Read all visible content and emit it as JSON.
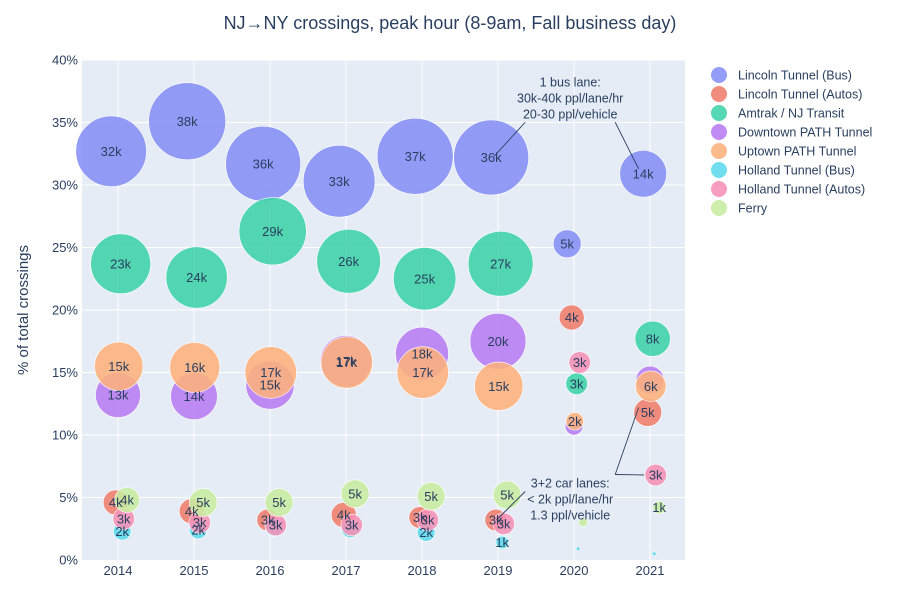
{
  "chart_data": {
    "type": "scatter",
    "title": "NJ→NY crossings, peak hour (8-9am, Fall business day)",
    "xlabel": "",
    "ylabel": "% of total crossings",
    "x_ticks": [
      "2014",
      "2015",
      "2016",
      "2017",
      "2018",
      "2019",
      "2020",
      "2021"
    ],
    "y_ticks": [
      "0%",
      "5%",
      "10%",
      "15%",
      "20%",
      "25%",
      "30%",
      "35%",
      "40%"
    ],
    "ylim": [
      0,
      40
    ],
    "grid": true,
    "legend_position": "right",
    "size_encodes": "crossings (thousands)",
    "series": [
      {
        "name": "Lincoln Tunnel (Bus)",
        "color": "#8590f6",
        "points": [
          {
            "x": 2014,
            "y": 32.7,
            "size_k": 32,
            "label": "32k"
          },
          {
            "x": 2015,
            "y": 35.1,
            "size_k": 38,
            "label": "38k"
          },
          {
            "x": 2016,
            "y": 31.7,
            "size_k": 36,
            "label": "36k"
          },
          {
            "x": 2017,
            "y": 30.3,
            "size_k": 33,
            "label": "33k"
          },
          {
            "x": 2018,
            "y": 32.3,
            "size_k": 37,
            "label": "37k"
          },
          {
            "x": 2019,
            "y": 32.2,
            "size_k": 36,
            "label": "36k"
          },
          {
            "x": 2020,
            "y": 25.3,
            "size_k": 5,
            "label": "5k"
          },
          {
            "x": 2021,
            "y": 30.9,
            "size_k": 14,
            "label": "14k"
          }
        ]
      },
      {
        "name": "Lincoln Tunnel (Autos)",
        "color": "#ef7d6b",
        "points": [
          {
            "x": 2014,
            "y": 4.6,
            "size_k": 4,
            "label": "4k"
          },
          {
            "x": 2015,
            "y": 3.9,
            "size_k": 4,
            "label": "4k"
          },
          {
            "x": 2016,
            "y": 3.2,
            "size_k": 3,
            "label": "3k"
          },
          {
            "x": 2017,
            "y": 3.6,
            "size_k": 4,
            "label": "4k"
          },
          {
            "x": 2018,
            "y": 3.4,
            "size_k": 3,
            "label": "3k"
          },
          {
            "x": 2019,
            "y": 3.2,
            "size_k": 3,
            "label": "3k"
          },
          {
            "x": 2020,
            "y": 19.4,
            "size_k": 4,
            "label": "4k"
          },
          {
            "x": 2021,
            "y": 11.8,
            "size_k": 5,
            "label": "5k"
          }
        ]
      },
      {
        "name": "Amtrak / NJ Transit",
        "color": "#3dd3a8",
        "points": [
          {
            "x": 2014,
            "y": 23.7,
            "size_k": 23,
            "label": "23k"
          },
          {
            "x": 2015,
            "y": 22.6,
            "size_k": 24,
            "label": "24k"
          },
          {
            "x": 2016,
            "y": 26.3,
            "size_k": 29,
            "label": "29k"
          },
          {
            "x": 2017,
            "y": 23.9,
            "size_k": 26,
            "label": "26k"
          },
          {
            "x": 2018,
            "y": 22.5,
            "size_k": 25,
            "label": "25k"
          },
          {
            "x": 2019,
            "y": 23.7,
            "size_k": 27,
            "label": "27k"
          },
          {
            "x": 2020,
            "y": 14.1,
            "size_k": 3,
            "label": "3k"
          },
          {
            "x": 2021,
            "y": 17.7,
            "size_k": 8,
            "label": "8k"
          }
        ]
      },
      {
        "name": "Downtown PATH Tunnel",
        "color": "#b77cf2",
        "points": [
          {
            "x": 2014,
            "y": 13.2,
            "size_k": 13,
            "label": "13k"
          },
          {
            "x": 2015,
            "y": 13.1,
            "size_k": 14,
            "label": "14k"
          },
          {
            "x": 2016,
            "y": 14.0,
            "size_k": 15,
            "label": "15k"
          },
          {
            "x": 2017,
            "y": 15.9,
            "size_k": 17,
            "label": "17k"
          },
          {
            "x": 2018,
            "y": 16.5,
            "size_k": 18,
            "label": "18k"
          },
          {
            "x": 2019,
            "y": 17.5,
            "size_k": 20,
            "label": "20k"
          },
          {
            "x": 2020,
            "y": 10.7,
            "size_k": 2,
            "label": ""
          },
          {
            "x": 2021,
            "y": 14.4,
            "size_k": 5,
            "label": ""
          }
        ]
      },
      {
        "name": "Uptown PATH Tunnel",
        "color": "#fdb07c",
        "points": [
          {
            "x": 2014,
            "y": 15.5,
            "size_k": 15,
            "label": "15k"
          },
          {
            "x": 2015,
            "y": 15.4,
            "size_k": 16,
            "label": "16k"
          },
          {
            "x": 2016,
            "y": 15.0,
            "size_k": 17,
            "label": "17k"
          },
          {
            "x": 2017,
            "y": 15.8,
            "size_k": 17,
            "label": "17k"
          },
          {
            "x": 2018,
            "y": 15.0,
            "size_k": 17,
            "label": "17k"
          },
          {
            "x": 2019,
            "y": 13.9,
            "size_k": 15,
            "label": "15k"
          },
          {
            "x": 2020,
            "y": 11.1,
            "size_k": 2,
            "label": "2k"
          },
          {
            "x": 2021,
            "y": 13.9,
            "size_k": 6,
            "label": "6k"
          }
        ]
      },
      {
        "name": "Holland Tunnel (Bus)",
        "color": "#5cd9ec",
        "points": [
          {
            "x": 2014,
            "y": 2.3,
            "size_k": 2,
            "label": "2k"
          },
          {
            "x": 2015,
            "y": 2.4,
            "size_k": 2,
            "label": "2k"
          },
          {
            "x": 2016,
            "y": 2.6,
            "size_k": 2,
            "label": ""
          },
          {
            "x": 2017,
            "y": 2.5,
            "size_k": 2,
            "label": ""
          },
          {
            "x": 2018,
            "y": 2.2,
            "size_k": 2,
            "label": "2k"
          },
          {
            "x": 2019,
            "y": 1.4,
            "size_k": 1,
            "label": "1k"
          },
          {
            "x": 2020,
            "y": 0.9,
            "size_k": 0.1,
            "label": ""
          },
          {
            "x": 2021,
            "y": 0.5,
            "size_k": 0.1,
            "label": ""
          }
        ]
      },
      {
        "name": "Holland Tunnel (Autos)",
        "color": "#f691b6",
        "points": [
          {
            "x": 2014,
            "y": 3.3,
            "size_k": 3,
            "label": "3k"
          },
          {
            "x": 2015,
            "y": 3.0,
            "size_k": 3,
            "label": "3k"
          },
          {
            "x": 2016,
            "y": 2.8,
            "size_k": 3,
            "label": "3k"
          },
          {
            "x": 2017,
            "y": 2.8,
            "size_k": 3,
            "label": "3k"
          },
          {
            "x": 2018,
            "y": 3.2,
            "size_k": 3,
            "label": "3k"
          },
          {
            "x": 2019,
            "y": 2.9,
            "size_k": 3,
            "label": "3k"
          },
          {
            "x": 2020,
            "y": 15.8,
            "size_k": 3,
            "label": "3k"
          },
          {
            "x": 2021,
            "y": 6.8,
            "size_k": 3,
            "label": "3k"
          }
        ]
      },
      {
        "name": "Ferry",
        "color": "#c7eca0",
        "points": [
          {
            "x": 2014,
            "y": 4.8,
            "size_k": 4,
            "label": "4k"
          },
          {
            "x": 2015,
            "y": 4.6,
            "size_k": 5,
            "label": "5k"
          },
          {
            "x": 2016,
            "y": 4.6,
            "size_k": 5,
            "label": "5k"
          },
          {
            "x": 2017,
            "y": 5.3,
            "size_k": 5,
            "label": "5k"
          },
          {
            "x": 2018,
            "y": 5.1,
            "size_k": 5,
            "label": "5k"
          },
          {
            "x": 2019,
            "y": 5.2,
            "size_k": 5,
            "label": "5k"
          },
          {
            "x": 2020,
            "y": 3.0,
            "size_k": 0.5,
            "label": ""
          },
          {
            "x": 2021,
            "y": 4.2,
            "size_k": 1,
            "label": "1k"
          }
        ]
      }
    ],
    "annotations": [
      {
        "lines": [
          "1 bus lane:",
          "30k-40k ppl/lane/hr",
          "20-30 ppl/vehicle"
        ],
        "text_x": 2019.95,
        "text_y": 37.9,
        "arrows_to": [
          {
            "x": 2018.95,
            "y": 32.3
          },
          {
            "x": 2020.85,
            "y": 31.3
          }
        ]
      },
      {
        "lines": [
          "3+2 car lanes:",
          "< 2k ppl/lane/hr",
          "1.3 ppl/vehicle"
        ],
        "text_x": 2019.95,
        "text_y": 5.8,
        "arrows_to": [
          {
            "x": 2020.85,
            "y": 12.2
          },
          {
            "x": 2020.92,
            "y": 6.8
          },
          {
            "x": 2018.98,
            "y": 3.2
          }
        ]
      }
    ]
  }
}
